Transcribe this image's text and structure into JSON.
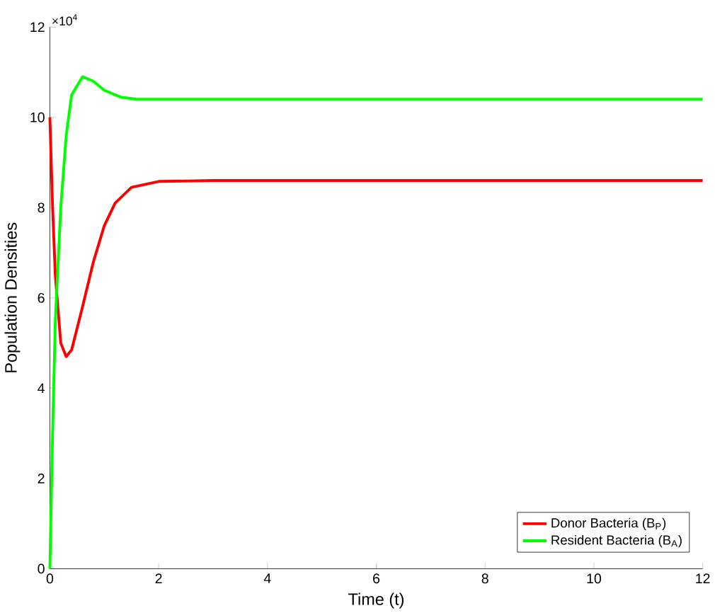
{
  "chart_data": {
    "type": "line",
    "xlabel": "Time (t)",
    "ylabel": "Population Densities",
    "annotations": [
      "×10$^{4}$"
    ],
    "xlim": [
      0,
      12
    ],
    "ylim": [
      0,
      12
    ],
    "xticks": [
      0,
      2,
      4,
      6,
      8,
      10,
      12
    ],
    "yticks": [
      0,
      2,
      4,
      6,
      8,
      10,
      12
    ],
    "legend": "bottom right",
    "grid": false,
    "marker": "none",
    "line_style": "solid",
    "series": [
      {
        "name": "Donor Bacteria (B$_{P}$)",
        "color": "#ff0000",
        "x": [
          0,
          0.05,
          0.1,
          0.2,
          0.3,
          0.4,
          0.6,
          0.8,
          1.0,
          1.2,
          1.5,
          2,
          3,
          12
        ],
        "values": [
          10,
          8,
          6.5,
          5.0,
          4.7,
          4.85,
          5.8,
          6.8,
          7.6,
          8.1,
          8.45,
          8.58,
          8.6,
          8.6
        ]
      },
      {
        "name": "Resident Bacteria (B$_{A}$)",
        "color": "#00ff00",
        "x": [
          0,
          0.05,
          0.1,
          0.2,
          0.3,
          0.4,
          0.6,
          0.8,
          1.0,
          1.3,
          1.6,
          2,
          12
        ],
        "values": [
          0,
          3,
          5.5,
          8,
          9.6,
          10.5,
          10.9,
          10.8,
          10.6,
          10.45,
          10.4,
          10.4,
          10.4
        ]
      }
    ]
  }
}
